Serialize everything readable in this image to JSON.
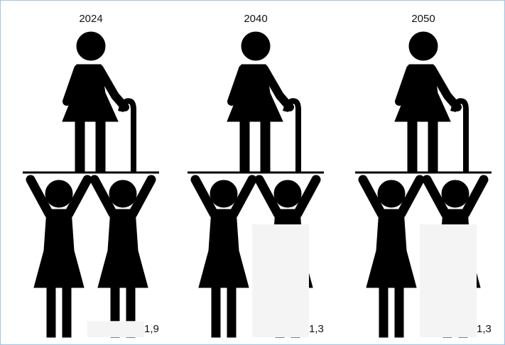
{
  "chart_data": {
    "type": "pictogram",
    "categories": [
      "2024",
      "2040",
      "2050"
    ],
    "values": [
      1.9,
      1.3,
      1.3
    ],
    "value_labels": [
      "1,9",
      "1,3",
      "1,3"
    ],
    "color": "#000000",
    "fill_color": "#b3b3b3"
  }
}
